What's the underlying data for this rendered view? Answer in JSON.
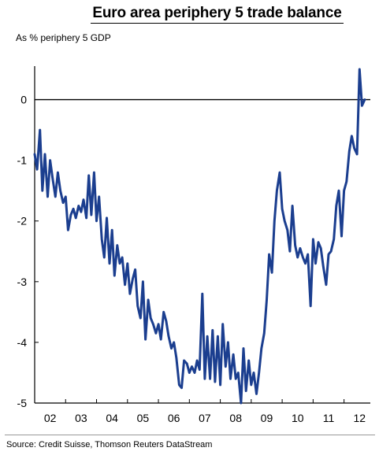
{
  "chart_data": {
    "type": "line",
    "title": "Euro area periphery 5 trade balance",
    "ylabel": "As % periphery 5 GDP",
    "xlabel": "",
    "source": "Source: Credit Suisse, Thomson Reuters DataStream",
    "x_tick_labels": [
      "02",
      "03",
      "04",
      "05",
      "06",
      "07",
      "08",
      "09",
      "10",
      "11",
      "12"
    ],
    "y_ticks": [
      0,
      -1,
      -2,
      -3,
      -4,
      -5
    ],
    "ylim": [
      -5,
      0.5
    ],
    "xlim": [
      2002.0,
      2012.85
    ],
    "grid": false,
    "line_color": "#1b3e8f",
    "series": [
      {
        "x": [
          2002.0,
          2002.08,
          2002.17,
          2002.25,
          2002.33,
          2002.42,
          2002.5,
          2002.58,
          2002.67,
          2002.75,
          2002.83,
          2002.92,
          2003.0,
          2003.08,
          2003.17,
          2003.25,
          2003.33,
          2003.42,
          2003.5,
          2003.58,
          2003.67,
          2003.75,
          2003.83,
          2003.92,
          2004.0,
          2004.08,
          2004.17,
          2004.25,
          2004.33,
          2004.42,
          2004.5,
          2004.58,
          2004.67,
          2004.75,
          2004.83,
          2004.92,
          2005.0,
          2005.08,
          2005.17,
          2005.25,
          2005.33,
          2005.42,
          2005.5,
          2005.58,
          2005.67,
          2005.75,
          2005.83,
          2005.92,
          2006.0,
          2006.08,
          2006.17,
          2006.25,
          2006.33,
          2006.42,
          2006.5,
          2006.58,
          2006.67,
          2006.75,
          2006.83,
          2006.92,
          2007.0,
          2007.08,
          2007.17,
          2007.25,
          2007.33,
          2007.42,
          2007.5,
          2007.58,
          2007.67,
          2007.75,
          2007.83,
          2007.92,
          2008.0,
          2008.08,
          2008.17,
          2008.25,
          2008.33,
          2008.42,
          2008.5,
          2008.58,
          2008.67,
          2008.75,
          2008.83,
          2008.92,
          2009.0,
          2009.08,
          2009.17,
          2009.25,
          2009.33,
          2009.42,
          2009.5,
          2009.58,
          2009.67,
          2009.75,
          2009.83,
          2009.92,
          2010.0,
          2010.08,
          2010.17,
          2010.25,
          2010.33,
          2010.42,
          2010.5,
          2010.58,
          2010.67,
          2010.75,
          2010.83,
          2010.92,
          2011.0,
          2011.08,
          2011.17,
          2011.25,
          2011.33,
          2011.42,
          2011.5,
          2011.58,
          2011.67,
          2011.75,
          2011.83,
          2011.92,
          2012.0,
          2012.08,
          2012.17,
          2012.25,
          2012.33,
          2012.42,
          2012.5,
          2012.58,
          2012.67
        ],
        "y": [
          -0.9,
          -1.15,
          -0.5,
          -1.5,
          -0.9,
          -1.6,
          -1.0,
          -1.3,
          -1.6,
          -1.2,
          -1.5,
          -1.7,
          -1.6,
          -2.15,
          -1.9,
          -1.8,
          -1.95,
          -1.75,
          -1.85,
          -1.65,
          -1.95,
          -1.25,
          -1.9,
          -1.2,
          -2.0,
          -1.6,
          -2.3,
          -2.6,
          -1.95,
          -2.7,
          -2.15,
          -2.9,
          -2.4,
          -2.7,
          -2.6,
          -3.05,
          -2.7,
          -3.2,
          -2.95,
          -2.8,
          -3.4,
          -3.6,
          -3.0,
          -3.95,
          -3.3,
          -3.6,
          -3.7,
          -3.85,
          -3.7,
          -3.95,
          -3.5,
          -3.65,
          -3.9,
          -4.1,
          -4.0,
          -4.25,
          -4.7,
          -4.75,
          -4.3,
          -4.35,
          -4.5,
          -4.4,
          -4.5,
          -4.3,
          -4.45,
          -3.2,
          -4.6,
          -3.9,
          -4.6,
          -3.8,
          -4.65,
          -3.9,
          -4.7,
          -3.7,
          -4.4,
          -4.0,
          -4.6,
          -4.2,
          -4.6,
          -4.5,
          -5.0,
          -4.1,
          -4.8,
          -4.3,
          -4.7,
          -4.5,
          -4.85,
          -4.5,
          -4.1,
          -3.85,
          -3.3,
          -2.55,
          -2.85,
          -2.0,
          -1.5,
          -1.2,
          -1.8,
          -2.0,
          -2.15,
          -2.5,
          -1.75,
          -2.4,
          -2.6,
          -2.45,
          -2.6,
          -2.7,
          -2.55,
          -3.4,
          -2.3,
          -2.7,
          -2.35,
          -2.45,
          -2.75,
          -3.05,
          -2.55,
          -2.5,
          -2.3,
          -1.75,
          -1.5,
          -2.25,
          -1.5,
          -1.35,
          -0.85,
          -0.6,
          -0.8,
          -0.9,
          0.5,
          -0.1,
          0.0
        ]
      }
    ]
  }
}
